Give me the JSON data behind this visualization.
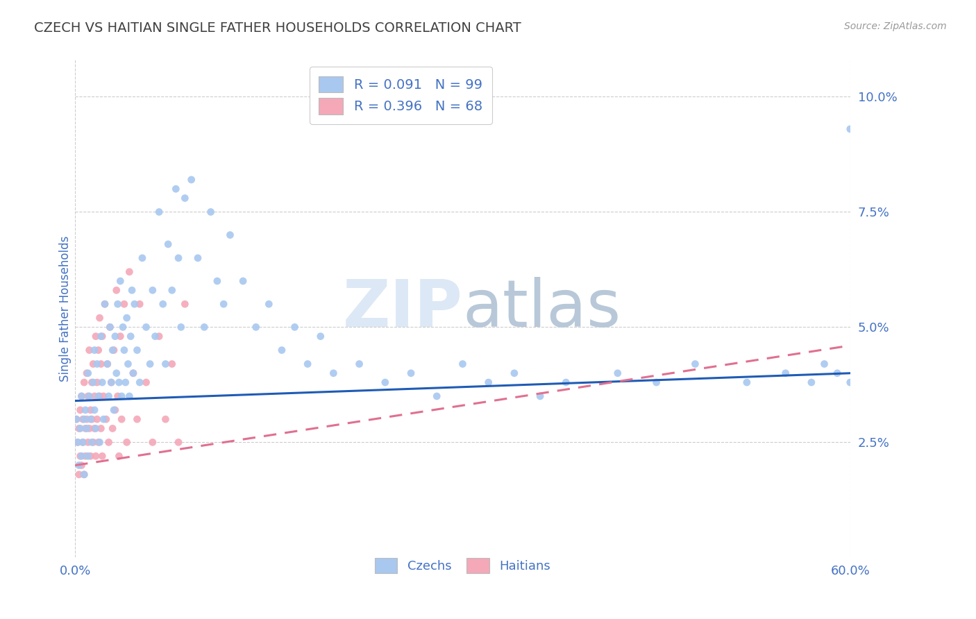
{
  "title": "CZECH VS HAITIAN SINGLE FATHER HOUSEHOLDS CORRELATION CHART",
  "source": "Source: ZipAtlas.com",
  "ylabel": "Single Father Households",
  "ytick_values": [
    0.025,
    0.05,
    0.075,
    0.1
  ],
  "xlim": [
    0.0,
    0.6
  ],
  "ylim": [
    0.0,
    0.108
  ],
  "czech_R": 0.091,
  "czech_N": 99,
  "haitian_R": 0.396,
  "haitian_N": 68,
  "czech_color": "#a8c8f0",
  "haitian_color": "#f4a8b8",
  "czech_line_color": "#1f5bb5",
  "haitian_line_color": "#e07090",
  "background_color": "#ffffff",
  "grid_color": "#cccccc",
  "title_color": "#404040",
  "axis_label_color": "#4472c4",
  "watermark_color": "#dce8f5",
  "czech_scatter_x": [
    0.001,
    0.002,
    0.003,
    0.004,
    0.005,
    0.005,
    0.006,
    0.007,
    0.007,
    0.008,
    0.009,
    0.01,
    0.01,
    0.011,
    0.012,
    0.013,
    0.014,
    0.015,
    0.015,
    0.016,
    0.017,
    0.018,
    0.019,
    0.02,
    0.021,
    0.022,
    0.023,
    0.025,
    0.026,
    0.027,
    0.028,
    0.029,
    0.03,
    0.031,
    0.032,
    0.033,
    0.034,
    0.035,
    0.036,
    0.037,
    0.038,
    0.039,
    0.04,
    0.041,
    0.042,
    0.043,
    0.044,
    0.045,
    0.046,
    0.048,
    0.05,
    0.052,
    0.055,
    0.058,
    0.06,
    0.062,
    0.065,
    0.068,
    0.07,
    0.072,
    0.075,
    0.078,
    0.08,
    0.082,
    0.085,
    0.09,
    0.095,
    0.1,
    0.105,
    0.11,
    0.115,
    0.12,
    0.13,
    0.14,
    0.15,
    0.16,
    0.17,
    0.18,
    0.19,
    0.2,
    0.22,
    0.24,
    0.26,
    0.28,
    0.3,
    0.32,
    0.34,
    0.36,
    0.38,
    0.42,
    0.45,
    0.48,
    0.52,
    0.55,
    0.57,
    0.58,
    0.59,
    0.6,
    0.6
  ],
  "czech_scatter_y": [
    0.03,
    0.025,
    0.02,
    0.028,
    0.022,
    0.035,
    0.025,
    0.03,
    0.018,
    0.032,
    0.028,
    0.04,
    0.022,
    0.035,
    0.03,
    0.025,
    0.038,
    0.032,
    0.045,
    0.028,
    0.042,
    0.035,
    0.025,
    0.048,
    0.038,
    0.03,
    0.055,
    0.042,
    0.035,
    0.05,
    0.038,
    0.045,
    0.032,
    0.048,
    0.04,
    0.055,
    0.038,
    0.06,
    0.035,
    0.05,
    0.045,
    0.038,
    0.052,
    0.042,
    0.035,
    0.048,
    0.058,
    0.04,
    0.055,
    0.045,
    0.038,
    0.065,
    0.05,
    0.042,
    0.058,
    0.048,
    0.075,
    0.055,
    0.042,
    0.068,
    0.058,
    0.08,
    0.065,
    0.05,
    0.078,
    0.082,
    0.065,
    0.05,
    0.075,
    0.06,
    0.055,
    0.07,
    0.06,
    0.05,
    0.055,
    0.045,
    0.05,
    0.042,
    0.048,
    0.04,
    0.042,
    0.038,
    0.04,
    0.035,
    0.042,
    0.038,
    0.04,
    0.035,
    0.038,
    0.04,
    0.038,
    0.042,
    0.038,
    0.04,
    0.038,
    0.042,
    0.04,
    0.093,
    0.038
  ],
  "haitian_scatter_x": [
    0.001,
    0.002,
    0.003,
    0.003,
    0.004,
    0.004,
    0.005,
    0.005,
    0.006,
    0.006,
    0.007,
    0.007,
    0.008,
    0.008,
    0.009,
    0.009,
    0.01,
    0.01,
    0.011,
    0.011,
    0.012,
    0.012,
    0.013,
    0.013,
    0.014,
    0.014,
    0.015,
    0.015,
    0.016,
    0.016,
    0.017,
    0.017,
    0.018,
    0.018,
    0.019,
    0.019,
    0.02,
    0.02,
    0.021,
    0.021,
    0.022,
    0.023,
    0.024,
    0.025,
    0.026,
    0.027,
    0.028,
    0.029,
    0.03,
    0.031,
    0.032,
    0.033,
    0.034,
    0.035,
    0.036,
    0.038,
    0.04,
    0.042,
    0.045,
    0.048,
    0.05,
    0.055,
    0.06,
    0.065,
    0.07,
    0.075,
    0.08,
    0.085
  ],
  "haitian_scatter_y": [
    0.03,
    0.025,
    0.018,
    0.028,
    0.022,
    0.032,
    0.02,
    0.035,
    0.025,
    0.03,
    0.018,
    0.038,
    0.028,
    0.022,
    0.04,
    0.03,
    0.025,
    0.035,
    0.028,
    0.045,
    0.032,
    0.022,
    0.038,
    0.03,
    0.025,
    0.042,
    0.035,
    0.028,
    0.048,
    0.022,
    0.038,
    0.03,
    0.045,
    0.025,
    0.052,
    0.035,
    0.028,
    0.042,
    0.022,
    0.048,
    0.035,
    0.055,
    0.03,
    0.042,
    0.025,
    0.05,
    0.038,
    0.028,
    0.045,
    0.032,
    0.058,
    0.035,
    0.022,
    0.048,
    0.03,
    0.055,
    0.025,
    0.062,
    0.04,
    0.03,
    0.055,
    0.038,
    0.025,
    0.048,
    0.03,
    0.042,
    0.025,
    0.055
  ],
  "czech_line_x": [
    0.0,
    0.6
  ],
  "czech_line_y": [
    0.034,
    0.04
  ],
  "haitian_line_x": [
    0.0,
    0.6
  ],
  "haitian_line_y": [
    0.02,
    0.046
  ]
}
